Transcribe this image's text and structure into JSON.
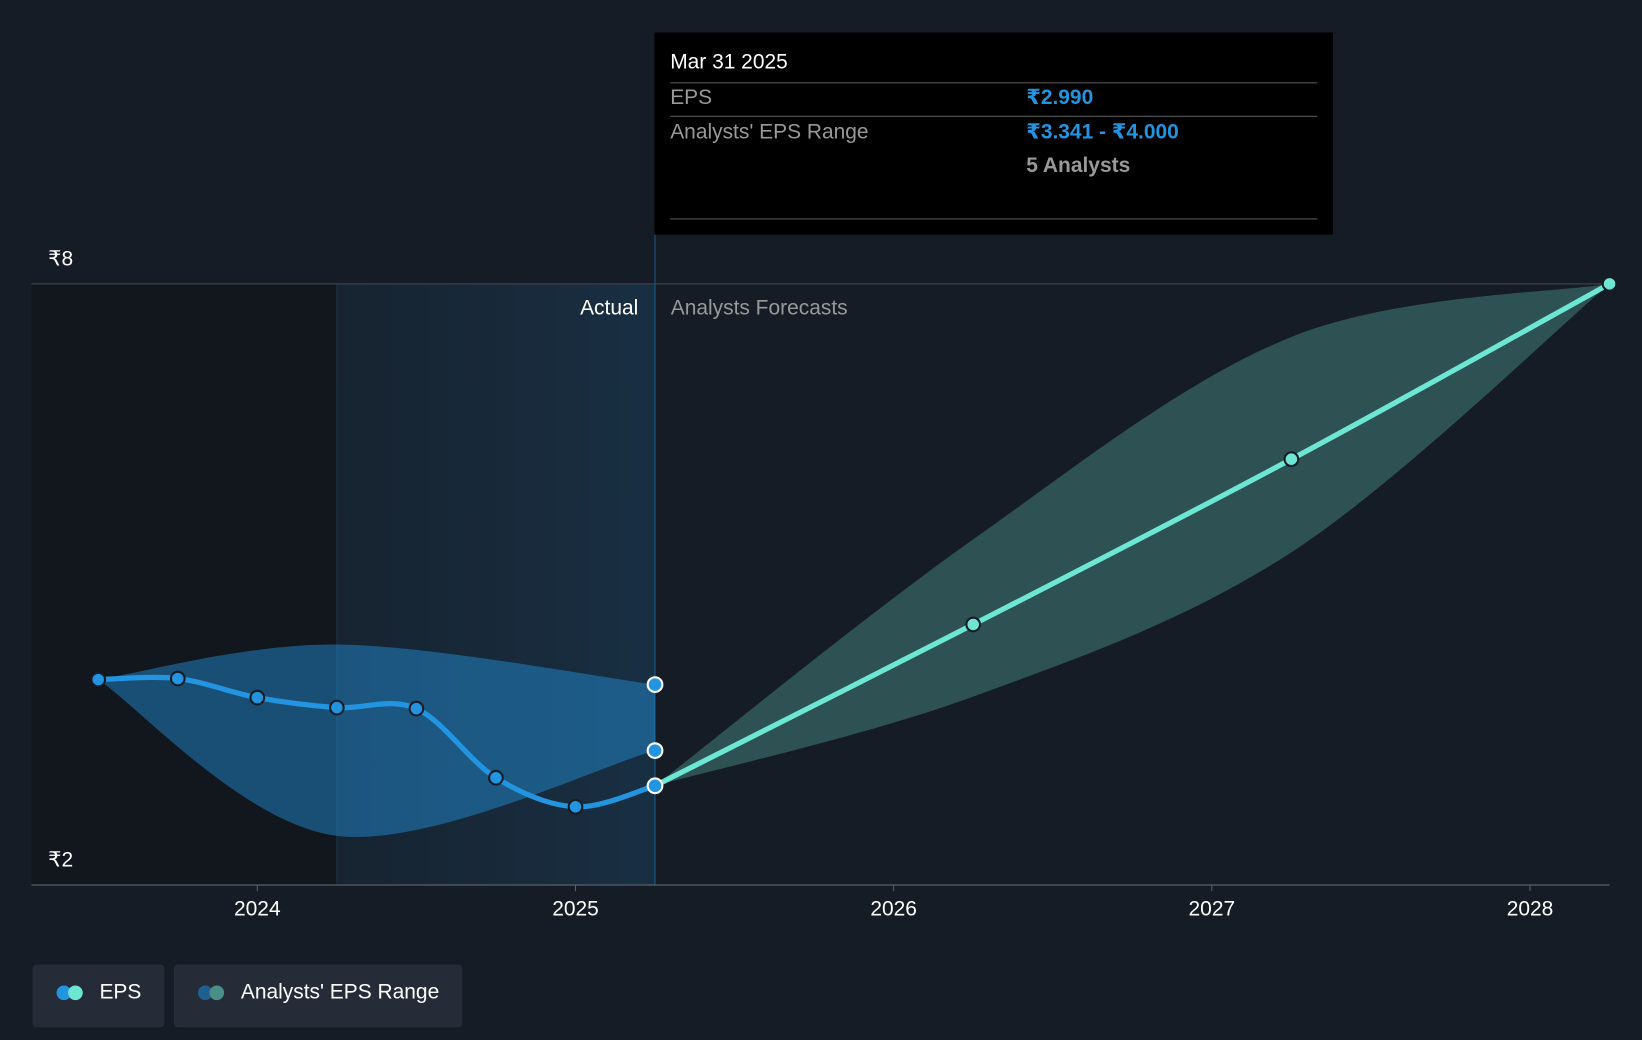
{
  "chart_data": {
    "type": "line",
    "xlim": [
      2023.29,
      2028.25
    ],
    "xticks": [
      2024,
      2025,
      2026,
      2027,
      2028
    ],
    "ylim": [
      2,
      8
    ],
    "yticks": [
      {
        "value": 2,
        "label": "₹2"
      },
      {
        "value": 8,
        "label": "₹8"
      }
    ],
    "grid": true,
    "actual_label": "Actual",
    "forecast_label": "Analysts Forecasts",
    "series": [
      {
        "name": "EPS",
        "colors": [
          "#2394df",
          "#6ee6d4"
        ],
        "x": [
          2023.5,
          2023.75,
          2024.0,
          2024.25,
          2024.5,
          2024.75,
          2025.0,
          2025.25,
          2026.25,
          2027.25,
          2028.25
        ],
        "values": [
          4.05,
          4.06,
          3.87,
          3.77,
          3.76,
          3.07,
          2.78,
          2.99,
          4.6,
          6.25,
          8.0
        ]
      },
      {
        "name": "Analysts' EPS Range",
        "colors": [
          "#1f5f8f",
          "#4a8f86"
        ],
        "bands": [
          {
            "x": [
              2023.5,
              2024.25,
              2025.25
            ],
            "low": [
              4.05,
              2.49,
              3.341
            ],
            "high": [
              4.05,
              4.4,
              4.0
            ]
          },
          {
            "x": [
              2025.25,
              2026.25,
              2027.25,
              2028.25
            ],
            "low": [
              2.99,
              3.88,
              5.32,
              8.0
            ],
            "high": [
              2.99,
              5.45,
              7.47,
              8.0
            ]
          }
        ]
      }
    ],
    "tooltip": {
      "date": "Mar 31 2025",
      "eps_label": "EPS",
      "eps_value": "₹2.990",
      "range_label": "Analysts' EPS Range",
      "range_value": "₹3.341 - ₹4.000",
      "analysts": "5 Analysts"
    }
  }
}
